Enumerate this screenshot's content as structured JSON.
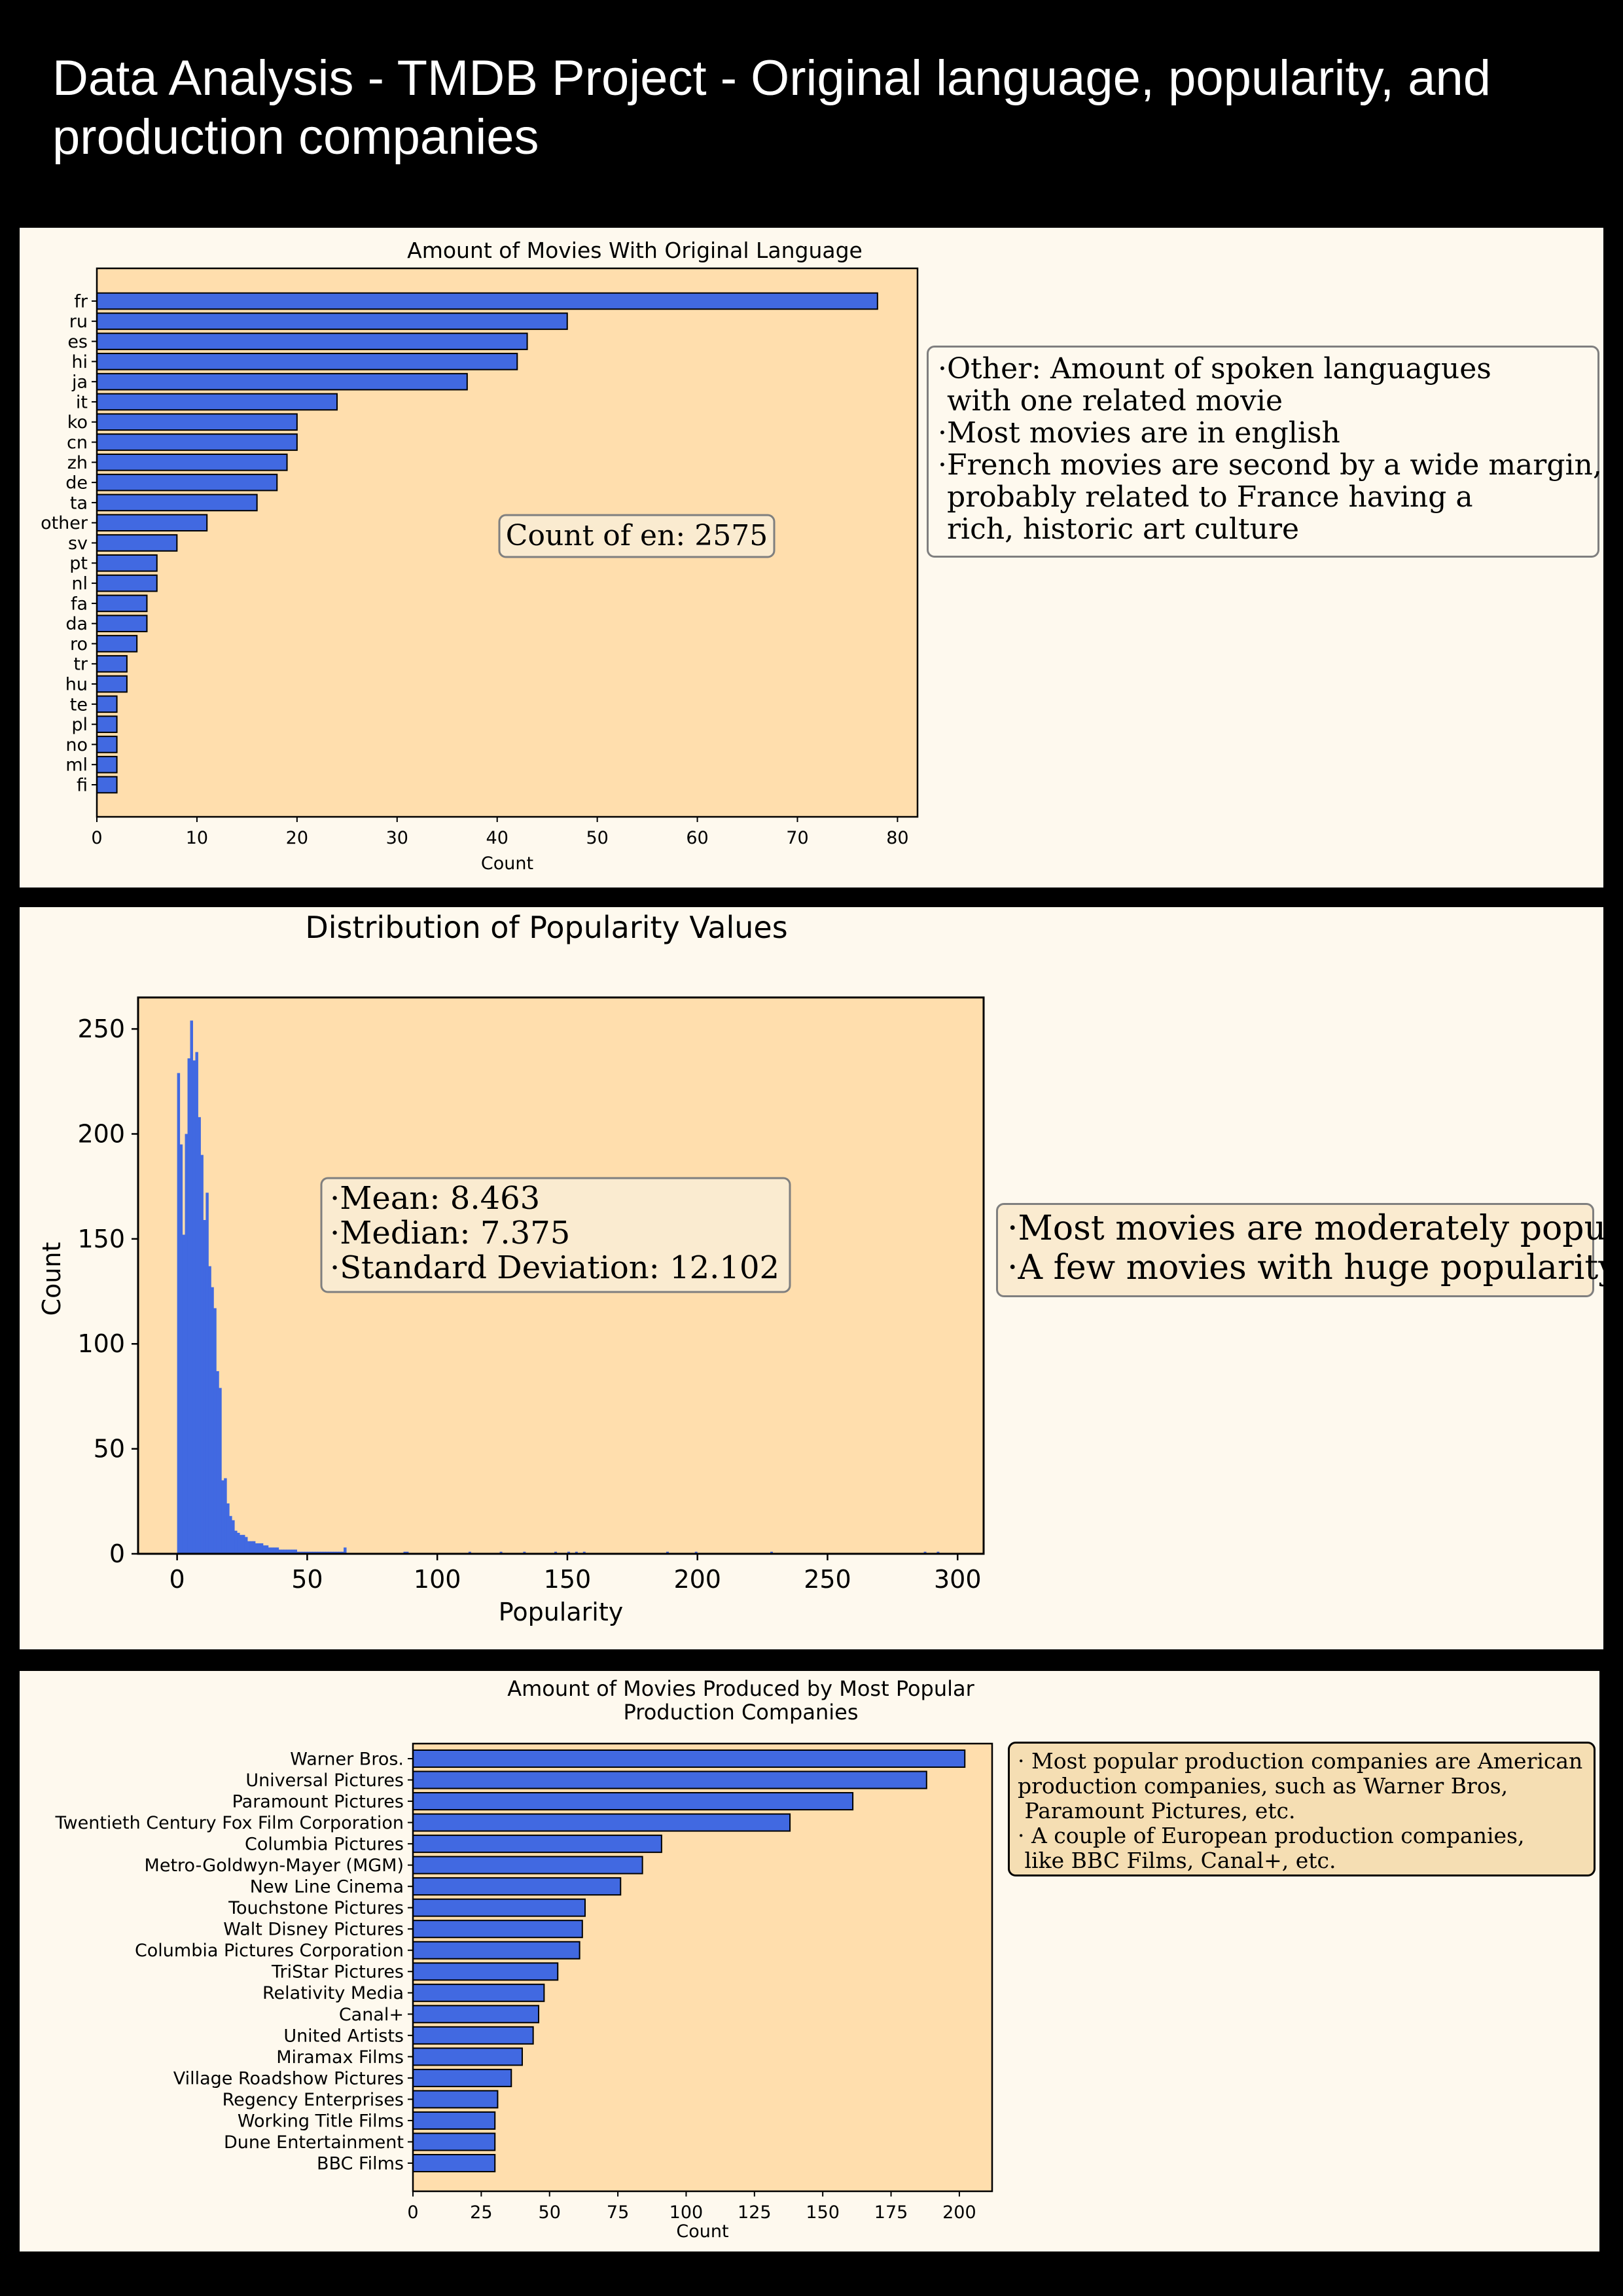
{
  "page": {
    "title": "Data Analysis - TMDB Project - Original language, popularity, and production companies"
  },
  "colors": {
    "bar": "#4169e1",
    "plot_bg": "#ffdead",
    "panel_bg": "#fef9ee",
    "page_bg": "#000000"
  },
  "chart_data": [
    {
      "type": "bar",
      "orientation": "horizontal",
      "title": "Amount of Movies With Original Language",
      "xlabel": "Count",
      "ylabel": "",
      "xlim": [
        0,
        82
      ],
      "xticks": [
        0,
        10,
        20,
        30,
        40,
        50,
        60,
        70,
        80
      ],
      "categories": [
        "fr",
        "ru",
        "es",
        "hi",
        "ja",
        "it",
        "ko",
        "cn",
        "zh",
        "de",
        "ta",
        "other",
        "sv",
        "pt",
        "nl",
        "fa",
        "da",
        "ro",
        "tr",
        "hu",
        "te",
        "pl",
        "no",
        "ml",
        "fi"
      ],
      "values": [
        78,
        47,
        43,
        42,
        37,
        24,
        20,
        20,
        19,
        18,
        16,
        11,
        8,
        6,
        6,
        5,
        5,
        4,
        3,
        3,
        2,
        2,
        2,
        2,
        2
      ],
      "annotation": "Count of en: 2575"
    },
    {
      "type": "histogram",
      "title": "Distribution of Popularity Values",
      "xlabel": "Popularity",
      "ylabel": "Count",
      "xlim": [
        -15,
        310
      ],
      "ylim": [
        0,
        265
      ],
      "xticks": [
        0,
        50,
        100,
        150,
        200,
        250,
        300
      ],
      "yticks": [
        0,
        50,
        100,
        150,
        200,
        250
      ],
      "bin_start": 0,
      "bin_width": 1,
      "counts": [
        229,
        195,
        152,
        200,
        236,
        254,
        235,
        239,
        208,
        190,
        159,
        172,
        137,
        127,
        117,
        87,
        79,
        35,
        36,
        24,
        18,
        16,
        11,
        10,
        9,
        9,
        8,
        6,
        6,
        6,
        5,
        5,
        5,
        4,
        4,
        3,
        3,
        3,
        3,
        2,
        2,
        2,
        2,
        2,
        2,
        2,
        1,
        1,
        1,
        1,
        1,
        1,
        1,
        1,
        1,
        1,
        1,
        1,
        1,
        1,
        1,
        1,
        1,
        1,
        3
      ],
      "tail_points": [
        [
          87,
          1
        ],
        [
          88,
          1
        ],
        [
          112,
          1
        ],
        [
          124,
          1
        ],
        [
          133,
          1
        ],
        [
          145,
          1
        ],
        [
          150,
          1
        ],
        [
          153,
          1
        ],
        [
          156,
          1
        ],
        [
          188,
          1
        ],
        [
          199,
          1
        ],
        [
          228,
          1
        ],
        [
          287,
          1
        ],
        [
          292,
          1
        ]
      ],
      "annotation": [
        "·Mean: 8.463",
        "·Median: 7.375",
        "·Standard Deviation: 12.102"
      ]
    },
    {
      "type": "bar",
      "orientation": "horizontal",
      "title": "Amount of Movies Produced by Most Popular Production Companies",
      "title_lines": [
        "Amount of Movies Produced by Most Popular",
        "Production Companies"
      ],
      "xlabel": "Count",
      "ylabel": "",
      "xlim": [
        0,
        212
      ],
      "xticks": [
        0,
        25,
        50,
        75,
        100,
        125,
        150,
        175,
        200
      ],
      "categories": [
        "Warner Bros.",
        "Universal Pictures",
        "Paramount Pictures",
        "Twentieth Century Fox Film Corporation",
        "Columbia Pictures",
        "Metro-Goldwyn-Mayer (MGM)",
        "New Line Cinema",
        "Touchstone Pictures",
        "Walt Disney Pictures",
        "Columbia Pictures Corporation",
        "TriStar Pictures",
        "Relativity Media",
        "Canal+",
        "United Artists",
        "Miramax Films",
        "Village Roadshow Pictures",
        "Regency Enterprises",
        "Working Title Films",
        "Dune Entertainment",
        "BBC Films"
      ],
      "values": [
        202,
        188,
        161,
        138,
        91,
        84,
        76,
        63,
        62,
        61,
        53,
        48,
        46,
        44,
        40,
        36,
        31,
        30,
        30,
        30
      ]
    }
  ],
  "notes": {
    "languages": [
      "·Other: Amount of spoken languagues",
      " with one related movie",
      "·Most movies are in english",
      "·French movies are second by a wide margin,",
      " probably related to France having a",
      " rich, historic art culture"
    ],
    "popularity": [
      "·Most movies are moderately popular",
      "·A few movies with huge popularity"
    ],
    "companies": [
      "· Most popular production companies are American",
      "production companies, such as Warner Bros,",
      " Paramount Pictures, etc.",
      "· A couple of European production companies,",
      " like BBC Films, Canal+, etc."
    ]
  }
}
